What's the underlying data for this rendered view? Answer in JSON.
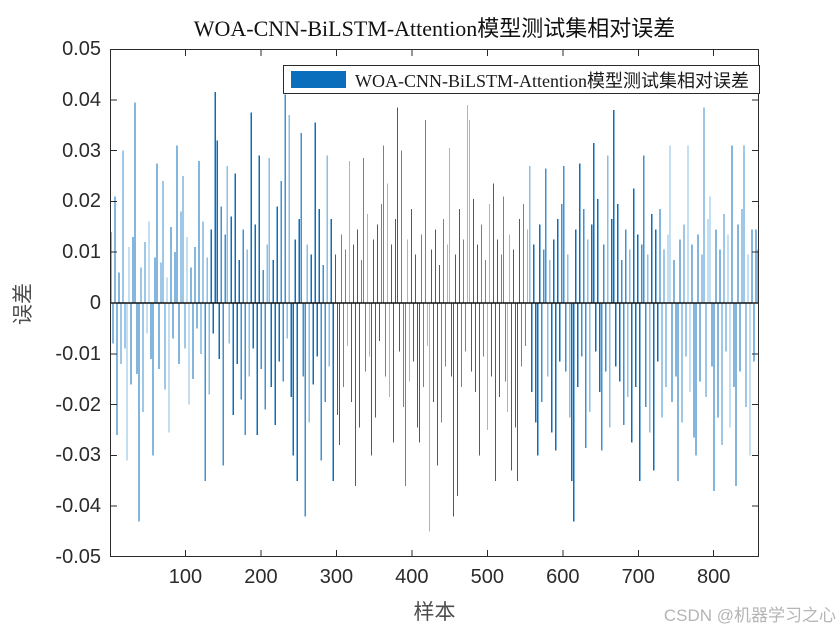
{
  "title": "WOA-CNN-BiLSTM-Attention模型测试集相对误差",
  "legend": {
    "label": "WOA-CNN-BiLSTM-Attention模型测试集相对误差"
  },
  "watermark": "CSDN @机器学习之心",
  "chart_data": {
    "type": "bar",
    "title": "WOA-CNN-BiLSTM-Attention模型测试集相对误差",
    "xlabel": "样本",
    "ylabel": "误差",
    "xlim": [
      0,
      860
    ],
    "ylim": [
      -0.05,
      0.05
    ],
    "x_ticks": [
      100,
      200,
      300,
      400,
      500,
      600,
      700,
      800
    ],
    "x_tick_labels": [
      "100",
      "200",
      "300",
      "400",
      "500",
      "600",
      "700",
      "800"
    ],
    "y_ticks": [
      0.05,
      0.04,
      0.03,
      0.02,
      0.01,
      0,
      -0.01,
      -0.02,
      -0.03,
      -0.04,
      -0.05
    ],
    "y_tick_labels": [
      "0.05",
      "0.04",
      "0.03",
      "0.02",
      "0.01",
      "0",
      "-0.01",
      "-0.02",
      "-0.03",
      "-0.04",
      "-0.05"
    ],
    "legend_position": "top-center-inside",
    "grid": false,
    "bar_color": "#0a6ebd",
    "bar_color_mid": "#3f92d2",
    "bar_color_light": "#8abfe6",
    "axis_color": "#2b2b2b",
    "baseline_color": "#111111",
    "x_start": 1,
    "x_step": 2.654,
    "values": [
      0.014,
      -0.008,
      0.021,
      -0.026,
      0.006,
      -0.012,
      0.03,
      -0.009,
      -0.031,
      0.011,
      -0.016,
      0.013,
      0.0395,
      -0.014,
      -0.043,
      0.007,
      -0.0215,
      0.012,
      -0.006,
      0.016,
      -0.011,
      -0.03,
      0.009,
      0.0275,
      -0.013,
      0.008,
      0.024,
      -0.017,
      0.005,
      -0.0255,
      0.015,
      -0.007,
      0.01,
      0.031,
      -0.012,
      0.018,
      0.025,
      -0.009,
      0.013,
      -0.02,
      0.007,
      -0.015,
      0.011,
      -0.005,
      0.028,
      -0.01,
      0.016,
      -0.035,
      0.009,
      -0.018,
      0.0145,
      -0.006,
      0.0415,
      0.032,
      -0.011,
      0.019,
      -0.032,
      0.0135,
      0.027,
      -0.008,
      0.017,
      -0.022,
      0.0255,
      -0.012,
      0.0085,
      -0.019,
      0.0145,
      -0.026,
      0.0105,
      -0.0145,
      0.0375,
      -0.009,
      0.0155,
      -0.026,
      0.029,
      -0.013,
      0.0065,
      -0.021,
      0.0115,
      0.0285,
      -0.0165,
      0.0085,
      -0.024,
      0.019,
      -0.0115,
      0.024,
      -0.0155,
      0.041,
      -0.007,
      0.037,
      -0.0185,
      -0.03,
      0.0125,
      -0.035,
      0.0165,
      0.0335,
      -0.0145,
      -0.042,
      0.0115,
      -0.0235,
      0.0095,
      -0.016,
      0.0355,
      -0.0105,
      0.0185,
      -0.031,
      0.0075,
      -0.0195,
      0.029,
      -0.0125,
      0.0165,
      -0.035,
      0.0095,
      -0.022,
      -0.028,
      0.0135,
      -0.0165,
      0.0105,
      -0.0085,
      0.028,
      -0.0195,
      0.0115,
      -0.036,
      0.0145,
      -0.0245,
      0.0085,
      0.0285,
      -0.0135,
      0.0175,
      -0.0105,
      -0.03,
      0.0125,
      -0.0225,
      0.0155,
      -0.0075,
      0.0195,
      0.031,
      -0.0145,
      0.0235,
      -0.0185,
      0.0115,
      -0.0275,
      0.0165,
      0.0385,
      -0.0095,
      0.03,
      -0.0205,
      -0.036,
      0.0125,
      -0.0155,
      0.0185,
      -0.0115,
      0.0095,
      -0.0245,
      -0.0275,
      0.0135,
      -0.0165,
      0.036,
      -0.0085,
      -0.045,
      0.0105,
      -0.0195,
      0.0145,
      -0.032,
      0.0075,
      -0.0235,
      0.0165,
      -0.0125,
      0.0115,
      0.0305,
      -0.0145,
      -0.042,
      0.0095,
      -0.038,
      0.0185,
      -0.0165,
      0.0125,
      -0.0095,
      0.039,
      0.036,
      -0.0135,
      0.0205,
      -0.0175,
      0.0115,
      -0.03,
      0.0155,
      -0.0105,
      0.0085,
      -0.025,
      0.0195,
      -0.0145,
      0.0235,
      -0.035,
      0.0125,
      -0.0185,
      0.0095,
      0.021,
      -0.0155,
      -0.0215,
      0.0135,
      -0.033,
      0.0105,
      -0.0245,
      -0.035,
      0.0165,
      -0.0125,
      0.0195,
      -0.0085,
      0.0145,
      0.027,
      -0.0175,
      0.0115,
      -0.0235,
      -0.03,
      0.0155,
      -0.0195,
      0.0105,
      0.0265,
      -0.0145,
      0.0085,
      -0.0255,
      0.0125,
      -0.029,
      0.0165,
      -0.0115,
      0.0195,
      0.027,
      -0.0135,
      0.0095,
      -0.0225,
      -0.035,
      -0.043,
      0.0145,
      -0.0165,
      0.0275,
      -0.0105,
      0.0185,
      -0.0285,
      0.0125,
      -0.0215,
      0.0155,
      0.0315,
      -0.0095,
      0.0205,
      -0.0175,
      -0.029,
      0.0115,
      -0.0135,
      0.029,
      -0.0245,
      0.0165,
      0.038,
      -0.0125,
      0.0195,
      -0.0155,
      0.0085,
      -0.024,
      0.0145,
      -0.0185,
      0.0105,
      -0.0275,
      0.0225,
      -0.0165,
      0.0135,
      -0.035,
      0.0115,
      0.029,
      -0.0205,
      0.0095,
      -0.0255,
      0.0175,
      -0.033,
      0.0145,
      -0.0115,
      0.0185,
      -0.0225,
      0.0105,
      -0.0165,
      0.0135,
      0.031,
      -0.0195,
      0.0085,
      -0.0145,
      -0.035,
      0.0125,
      -0.0235,
      0.0155,
      -0.0105,
      0.031,
      -0.0175,
      0.0115,
      -0.0265,
      -0.03,
      0.0135,
      -0.0155,
      0.0095,
      0.0385,
      -0.0185,
      0.0165,
      0.021,
      -0.0125,
      -0.037,
      0.0145,
      -0.0225,
      0.0105,
      -0.028,
      0.0175,
      -0.0095,
      0.0135,
      -0.0245,
      0.031,
      -0.0165,
      -0.036,
      0.0155,
      -0.0135,
      0.0185,
      0.031,
      -0.0205,
      0.0095,
      -0.03,
      0.0145,
      -0.0115,
      0.0145,
      0.0105
    ]
  }
}
